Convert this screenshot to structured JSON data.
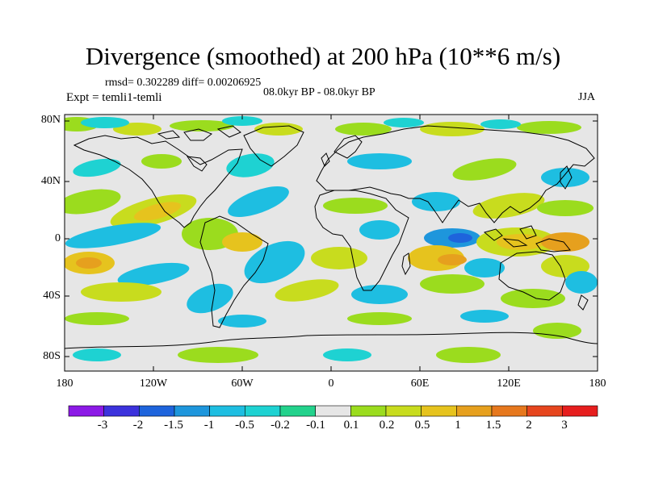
{
  "title": "Divergence (smoothed) at 200 hPa (10**6 m/s)",
  "stats_text": "rmsd= 0.302289 diff= 0.00206925",
  "expt_text": "Expt = temli1-temli",
  "period_text": "08.0kyr BP - 08.0kyr BP",
  "season": "JJA",
  "map": {
    "lat_ticks": [
      "80N",
      "40N",
      "0",
      "40S",
      "80S"
    ],
    "lon_ticks": [
      "180",
      "120W",
      "60W",
      "0",
      "60E",
      "120E",
      "180"
    ],
    "background_color": "#e6e6e6",
    "coast_color": "#000000"
  },
  "colorbar": {
    "colors": [
      "#8c1ae6",
      "#3c32dc",
      "#1e64dc",
      "#1e96dc",
      "#1ebee1",
      "#1ed2d2",
      "#23d28c",
      "#e6e6e6",
      "#9bdc1e",
      "#c8dc1e",
      "#e6c31e",
      "#e6a01e",
      "#e6781e",
      "#e6461e",
      "#e61e1e"
    ],
    "labels": [
      "-3",
      "-2",
      "-1.5",
      "-1",
      "-0.5",
      "-0.2",
      "-0.1",
      "0.1",
      "0.2",
      "0.5",
      "1",
      "1.5",
      "2",
      "3"
    ]
  }
}
